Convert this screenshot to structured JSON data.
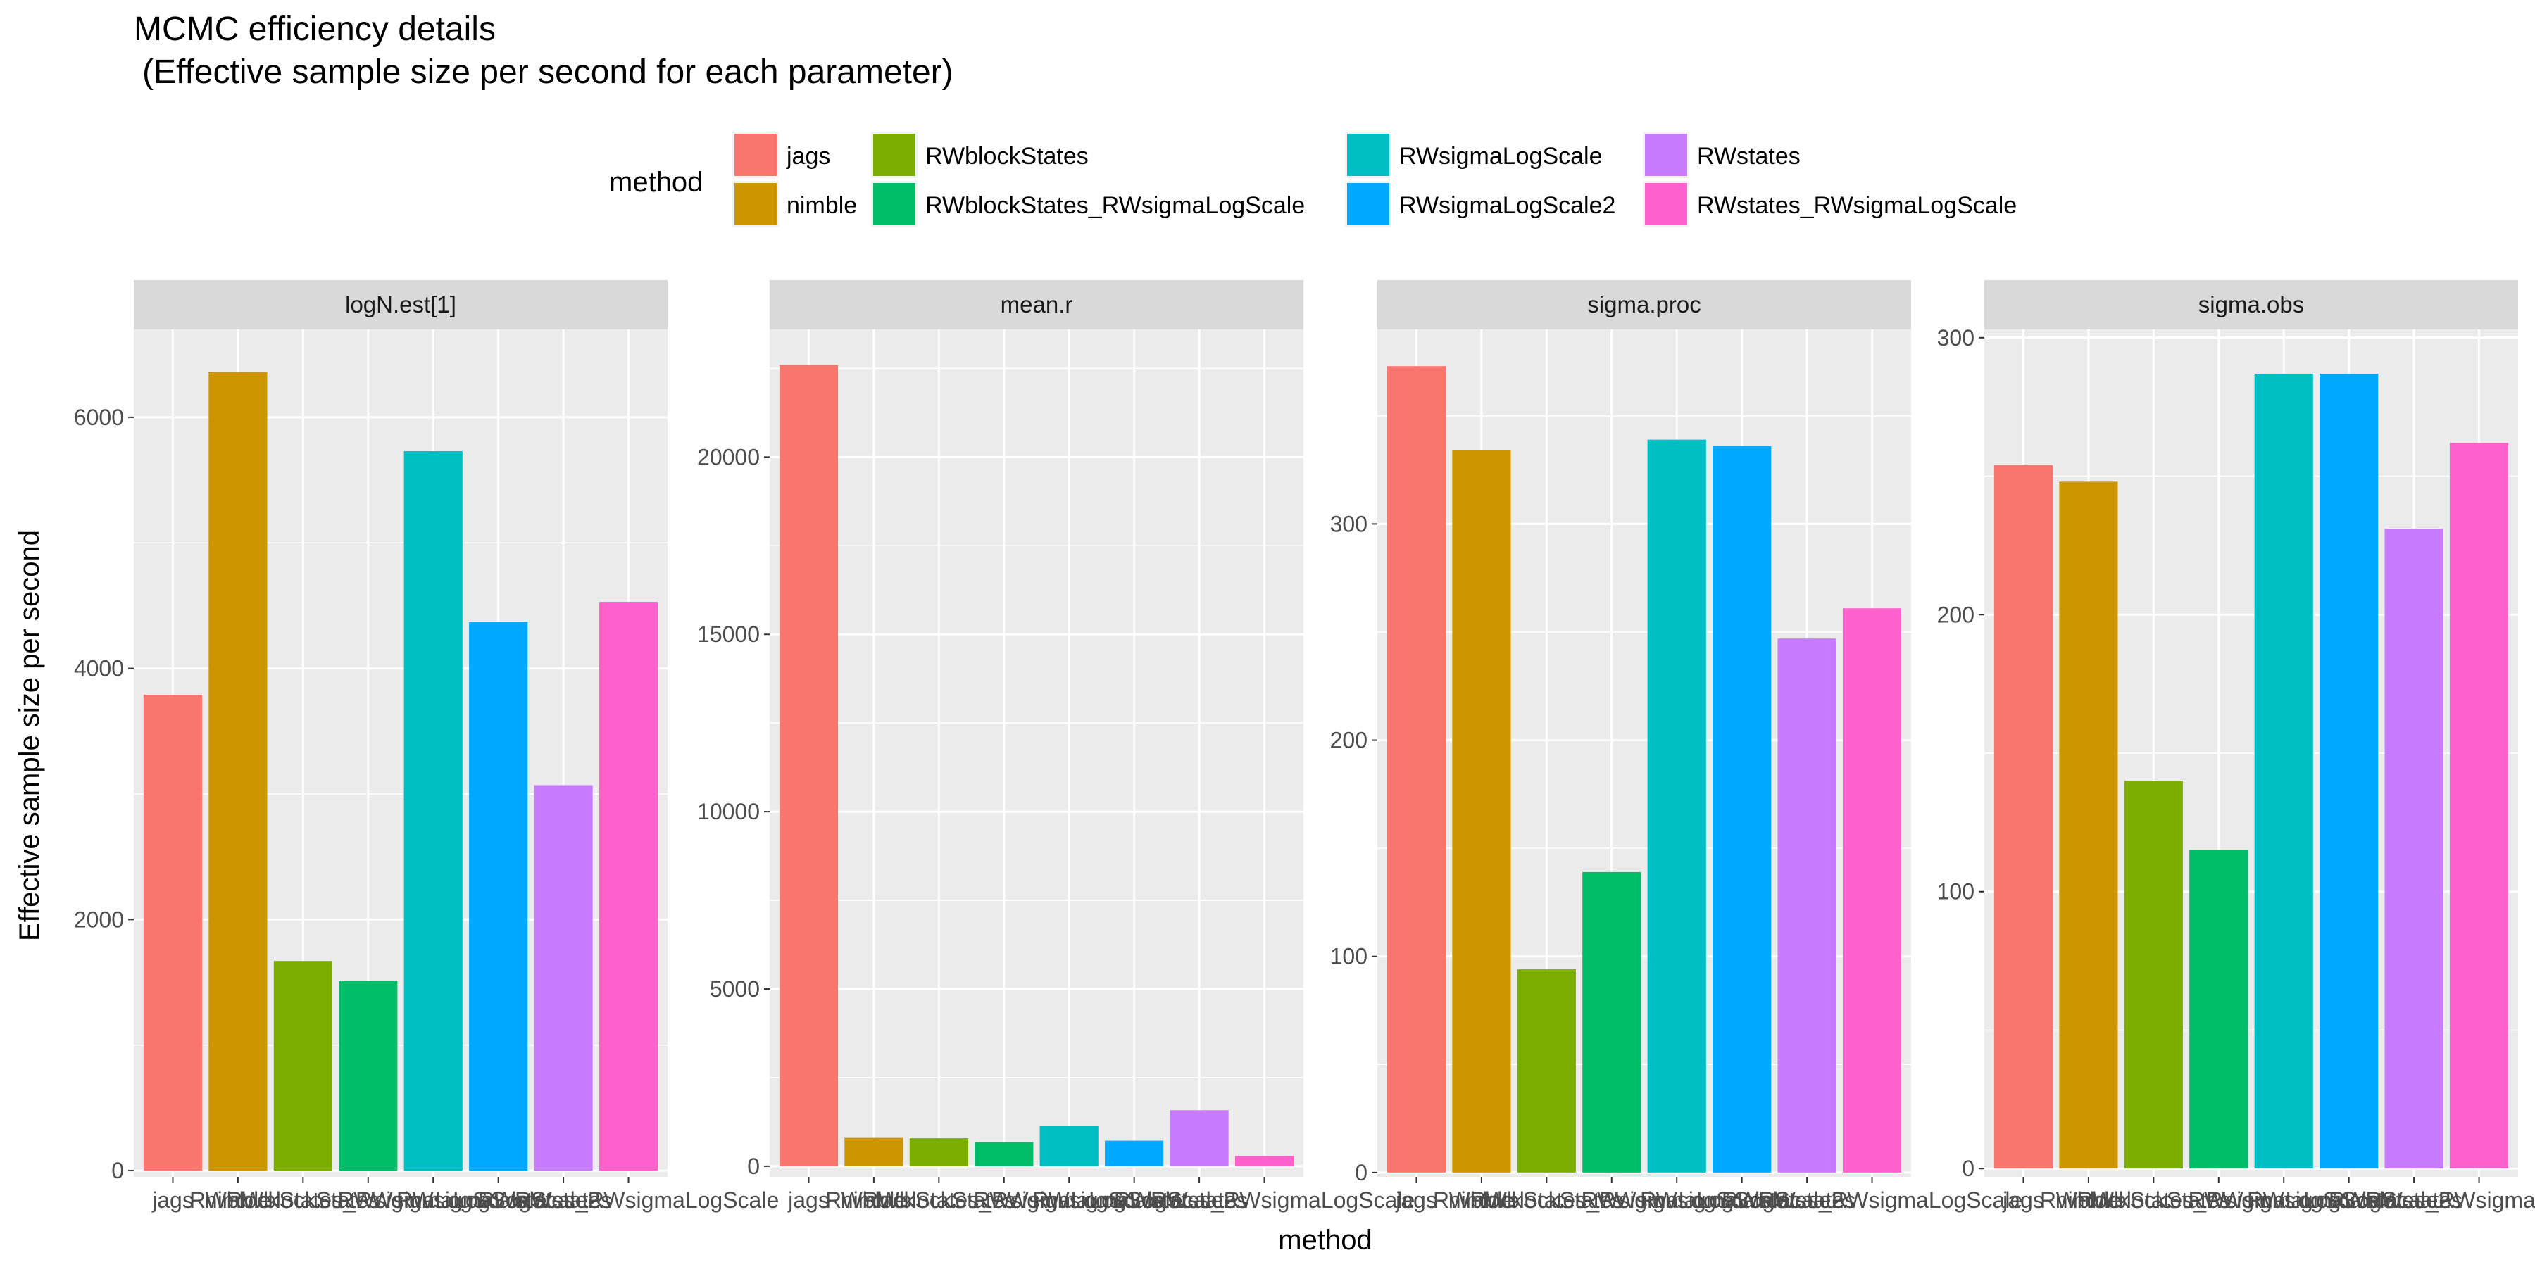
{
  "chart_data": {
    "type": "bar",
    "title": "MCMC efficiency details",
    "subtitle": "(Effective sample size per second for each parameter)",
    "xlabel": "method",
    "ylabel": "Effective sample size per second",
    "grid": true,
    "legend_title": "method",
    "legend_position": "top",
    "categories": [
      "jags",
      "nimble",
      "RWblockStates",
      "RWblockStates_RWsigmaLogScale",
      "RWsigmaLogScale",
      "RWsigmaLogScale2",
      "RWstates",
      "RWstates_RWsigmaLogScale"
    ],
    "colors": [
      "#F8766D",
      "#CD9600",
      "#7CAE00",
      "#00BE67",
      "#00BFC4",
      "#00A9FF",
      "#C77CFF",
      "#FF61CC"
    ],
    "panels": [
      {
        "name": "logN.est[1]",
        "ylim": [
          -50,
          6700
        ],
        "yticks": [
          0,
          2000,
          4000,
          6000
        ],
        "ytick_labels": [
          "0",
          "2000",
          "4000",
          "6000"
        ],
        "values": [
          3790,
          6360,
          1670,
          1510,
          5730,
          4370,
          3070,
          4530
        ]
      },
      {
        "name": "mean.r",
        "ylim": [
          -300,
          23600
        ],
        "yticks": [
          0,
          5000,
          10000,
          15000,
          20000
        ],
        "ytick_labels": [
          "0",
          "5000",
          "10000",
          "15000",
          "20000"
        ],
        "values": [
          22600,
          800,
          790,
          680,
          1130,
          720,
          1580,
          290
        ]
      },
      {
        "name": "sigma.proc",
        "ylim": [
          -2,
          390
        ],
        "yticks": [
          0,
          100,
          200,
          300
        ],
        "ytick_labels": [
          "0",
          "100",
          "200",
          "300"
        ],
        "values": [
          373,
          334,
          94,
          139,
          339,
          336,
          247,
          261
        ]
      },
      {
        "name": "sigma.obs",
        "ylim": [
          -3,
          303
        ],
        "yticks": [
          0,
          100,
          200,
          300
        ],
        "ytick_labels": [
          "0",
          "100",
          "200",
          "300"
        ],
        "values": [
          254,
          248,
          140,
          115,
          287,
          287,
          231,
          262
        ]
      }
    ]
  }
}
